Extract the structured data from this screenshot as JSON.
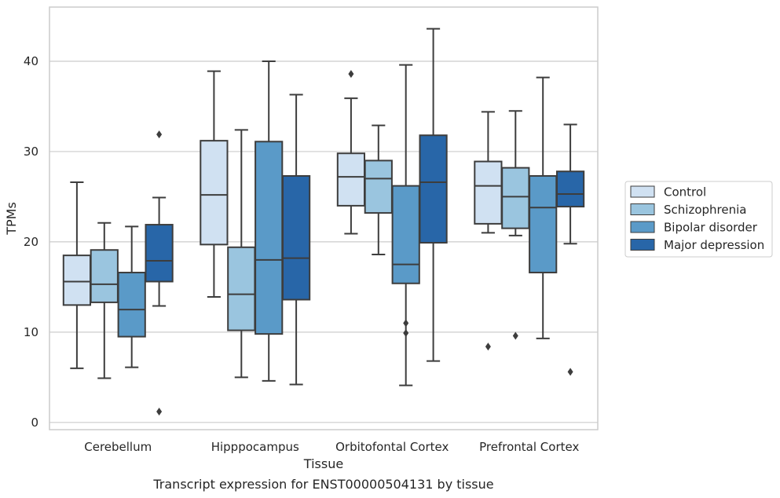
{
  "chart_data": {
    "type": "box",
    "title": "Transcript expression for ENST00000504131 by tissue",
    "xlabel": "Tissue",
    "ylabel": "TPMs",
    "ylim": [
      -0.8,
      46
    ],
    "yticks": [
      0,
      10,
      20,
      30,
      40
    ],
    "grid": "horizontal",
    "legend_position": "right",
    "categories": [
      "Cerebellum",
      "Hipppocampus",
      "Orbitofontal Cortex",
      "Prefrontal Cortex"
    ],
    "series": [
      {
        "name": "Control",
        "color": "#d0e1f2",
        "boxes": [
          {
            "whislo": 6.0,
            "q1": 13.0,
            "med": 15.6,
            "q3": 18.5,
            "whishi": 26.6,
            "fliers": []
          },
          {
            "whislo": 13.9,
            "q1": 19.7,
            "med": 25.2,
            "q3": 31.2,
            "whishi": 38.9,
            "fliers": []
          },
          {
            "whislo": 20.9,
            "q1": 24.0,
            "med": 27.2,
            "q3": 29.8,
            "whishi": 35.9,
            "fliers": [
              38.6
            ]
          },
          {
            "whislo": 21.0,
            "q1": 22.0,
            "med": 26.2,
            "q3": 28.9,
            "whishi": 34.4,
            "fliers": [
              8.4
            ]
          }
        ]
      },
      {
        "name": "Schizophrenia",
        "color": "#9ac5df",
        "boxes": [
          {
            "whislo": 4.9,
            "q1": 13.3,
            "med": 15.3,
            "q3": 19.1,
            "whishi": 22.1,
            "fliers": []
          },
          {
            "whislo": 5.0,
            "q1": 10.2,
            "med": 14.2,
            "q3": 19.4,
            "whishi": 32.4,
            "fliers": []
          },
          {
            "whislo": 18.6,
            "q1": 23.2,
            "med": 27.0,
            "q3": 29.0,
            "whishi": 32.9,
            "fliers": []
          },
          {
            "whislo": 20.7,
            "q1": 21.5,
            "med": 25.0,
            "q3": 28.2,
            "whishi": 34.5,
            "fliers": [
              9.6
            ]
          }
        ]
      },
      {
        "name": "Bipolar disorder",
        "color": "#5a9ac8",
        "boxes": [
          {
            "whislo": 6.1,
            "q1": 9.5,
            "med": 12.5,
            "q3": 16.6,
            "whishi": 21.7,
            "fliers": []
          },
          {
            "whislo": 4.6,
            "q1": 9.8,
            "med": 18.0,
            "q3": 31.1,
            "whishi": 40.0,
            "fliers": []
          },
          {
            "whislo": 4.1,
            "q1": 15.4,
            "med": 17.5,
            "q3": 26.2,
            "whishi": 39.6,
            "fliers": [
              11.0,
              9.9
            ]
          },
          {
            "whislo": 9.3,
            "q1": 16.6,
            "med": 23.8,
            "q3": 27.3,
            "whishi": 38.2,
            "fliers": []
          }
        ]
      },
      {
        "name": "Major depression",
        "color": "#2866a8",
        "boxes": [
          {
            "whislo": 12.9,
            "q1": 15.6,
            "med": 17.9,
            "q3": 21.9,
            "whishi": 24.9,
            "fliers": [
              31.9,
              1.2
            ]
          },
          {
            "whislo": 4.2,
            "q1": 13.6,
            "med": 18.2,
            "q3": 27.3,
            "whishi": 36.3,
            "fliers": []
          },
          {
            "whislo": 6.8,
            "q1": 19.9,
            "med": 26.6,
            "q3": 31.8,
            "whishi": 43.6,
            "fliers": []
          },
          {
            "whislo": 19.8,
            "q1": 23.9,
            "med": 25.3,
            "q3": 27.8,
            "whishi": 33.0,
            "fliers": [
              5.6
            ]
          }
        ]
      }
    ]
  }
}
